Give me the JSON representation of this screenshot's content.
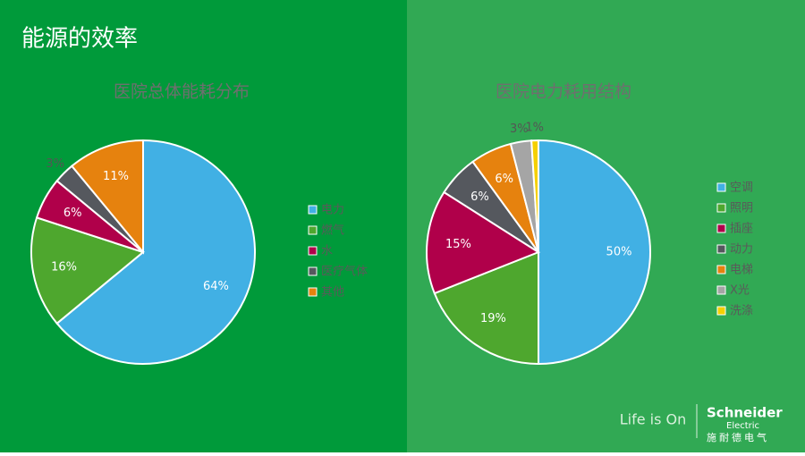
{
  "slide_title": "能源的效率",
  "chart_data": [
    {
      "type": "pie",
      "title": "医院总体能耗分布",
      "categories": [
        "电力",
        "燃气",
        "水",
        "医疗气体",
        "其他"
      ],
      "values": [
        64,
        16,
        6,
        3,
        11
      ],
      "value_labels": [
        "64%",
        "16%",
        "6%",
        "3%",
        "11%"
      ],
      "colors": [
        "#41b0e4",
        "#4ea72e",
        "#b0004a",
        "#55585e",
        "#e6820e"
      ],
      "legend": "right"
    },
    {
      "type": "pie",
      "title": "医院电力耗用结构",
      "categories": [
        "空调",
        "照明",
        "插座",
        "动力",
        "电梯",
        "X光",
        "洗涤"
      ],
      "values": [
        50,
        19,
        15,
        6,
        6,
        3,
        1
      ],
      "value_labels": [
        "50%",
        "19%",
        "15%",
        "6%",
        "6%",
        "3%",
        "1%"
      ],
      "colors": [
        "#41b0e4",
        "#4ea72e",
        "#b0004a",
        "#55585e",
        "#e6820e",
        "#a5a5a5",
        "#f5d000"
      ],
      "legend": "right"
    }
  ],
  "logo": {
    "slogan": "Life is On",
    "brand": "Schneider",
    "brand_sub": "Electric",
    "brand_cn": "施耐德电气"
  }
}
